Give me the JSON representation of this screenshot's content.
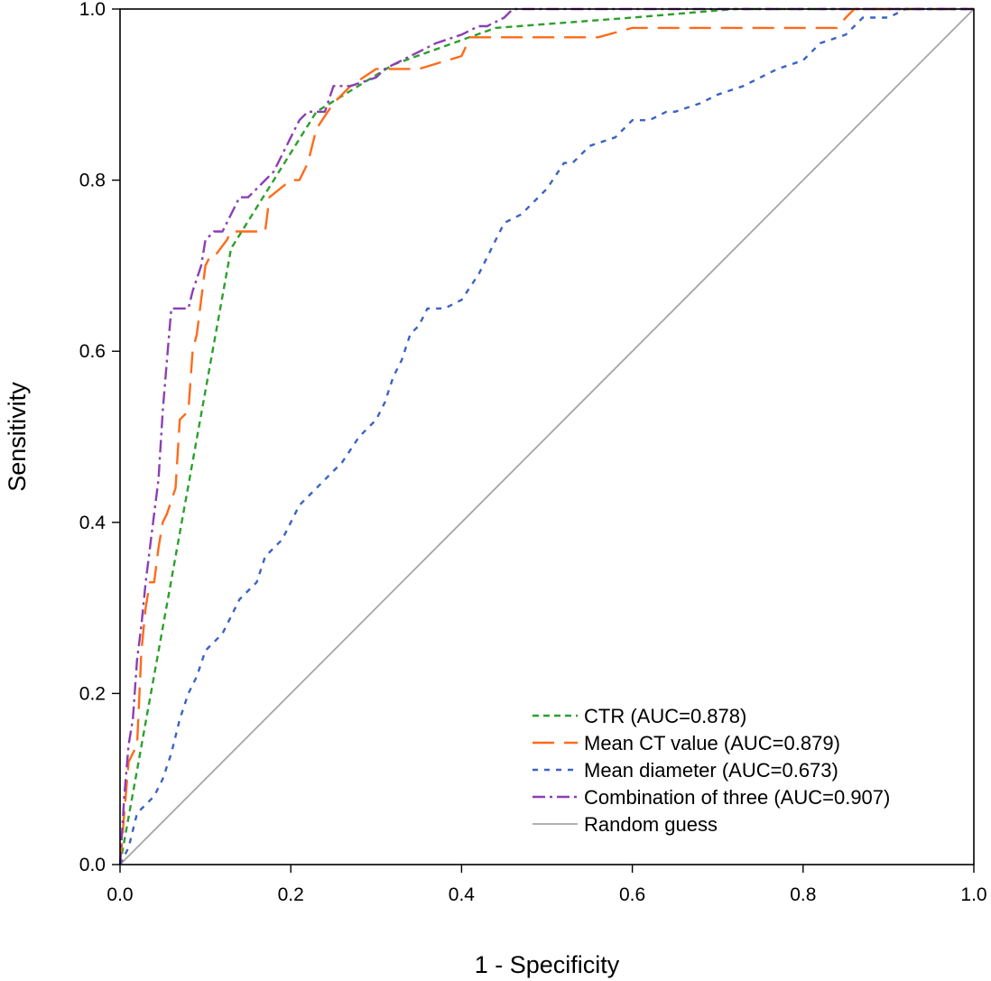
{
  "chart_data": {
    "type": "line",
    "title": "",
    "xlabel": "1 - Specificity",
    "ylabel": "Sensitivity",
    "xlim": [
      0,
      1
    ],
    "ylim": [
      0,
      1
    ],
    "x_ticks": [
      "0.0",
      "0.2",
      "0.4",
      "0.6",
      "0.8",
      "1.0"
    ],
    "y_ticks": [
      "0.0",
      "0.2",
      "0.4",
      "0.6",
      "0.8",
      "1.0"
    ],
    "grid": false,
    "legend_position": "bottom-right",
    "series": [
      {
        "name": "CTR (AUC=0.878)",
        "color": "#2ca02c",
        "style": "short-dash",
        "x": [
          0,
          0.13,
          0.23,
          0.32,
          0.44,
          0.6,
          0.72,
          1
        ],
        "y": [
          0,
          0.72,
          0.88,
          0.935,
          0.978,
          0.99,
          1,
          1
        ]
      },
      {
        "name": "Mean CT value (AUC=0.879)",
        "color": "#ff6a1a",
        "style": "long-dash",
        "x": [
          0,
          0.005,
          0.01,
          0.02,
          0.025,
          0.03,
          0.035,
          0.04,
          0.045,
          0.05,
          0.055,
          0.065,
          0.07,
          0.08,
          0.085,
          0.09,
          0.1,
          0.105,
          0.11,
          0.125,
          0.13,
          0.17,
          0.175,
          0.2,
          0.21,
          0.22,
          0.23,
          0.25,
          0.27,
          0.3,
          0.35,
          0.4,
          0.41,
          0.45,
          0.56,
          0.6,
          0.84,
          0.85,
          0.86,
          1
        ],
        "y": [
          0,
          0.06,
          0.12,
          0.14,
          0.25,
          0.3,
          0.33,
          0.33,
          0.37,
          0.4,
          0.41,
          0.44,
          0.52,
          0.53,
          0.6,
          0.62,
          0.7,
          0.71,
          0.71,
          0.73,
          0.74,
          0.74,
          0.78,
          0.8,
          0.8,
          0.82,
          0.86,
          0.89,
          0.91,
          0.93,
          0.93,
          0.945,
          0.967,
          0.967,
          0.967,
          0.978,
          0.978,
          0.99,
          1,
          1
        ]
      },
      {
        "name": "Mean diameter (AUC=0.673)",
        "color": "#3b62c4",
        "style": "dotted-dash",
        "x": [
          0,
          0.01,
          0.02,
          0.04,
          0.05,
          0.06,
          0.07,
          0.08,
          0.09,
          0.1,
          0.12,
          0.13,
          0.14,
          0.16,
          0.17,
          0.18,
          0.19,
          0.2,
          0.21,
          0.22,
          0.23,
          0.24,
          0.25,
          0.26,
          0.28,
          0.3,
          0.31,
          0.32,
          0.33,
          0.34,
          0.35,
          0.36,
          0.37,
          0.38,
          0.4,
          0.42,
          0.43,
          0.44,
          0.45,
          0.47,
          0.49,
          0.5,
          0.52,
          0.53,
          0.55,
          0.58,
          0.6,
          0.62,
          0.64,
          0.65,
          0.68,
          0.7,
          0.73,
          0.75,
          0.77,
          0.8,
          0.81,
          0.82,
          0.85,
          0.86,
          0.87,
          0.9,
          0.92,
          1
        ],
        "y": [
          0,
          0.02,
          0.06,
          0.08,
          0.1,
          0.13,
          0.17,
          0.2,
          0.22,
          0.25,
          0.27,
          0.29,
          0.31,
          0.33,
          0.36,
          0.37,
          0.38,
          0.4,
          0.42,
          0.43,
          0.44,
          0.45,
          0.46,
          0.47,
          0.5,
          0.52,
          0.54,
          0.57,
          0.59,
          0.62,
          0.63,
          0.65,
          0.65,
          0.65,
          0.66,
          0.69,
          0.71,
          0.73,
          0.75,
          0.76,
          0.78,
          0.79,
          0.82,
          0.82,
          0.84,
          0.85,
          0.87,
          0.87,
          0.88,
          0.88,
          0.89,
          0.9,
          0.91,
          0.92,
          0.93,
          0.94,
          0.95,
          0.96,
          0.97,
          0.98,
          0.99,
          0.99,
          1,
          1
        ]
      },
      {
        "name": "Combination of three (AUC=0.907)",
        "color": "#8b3fb3",
        "style": "dash-dot",
        "x": [
          0,
          0.005,
          0.01,
          0.015,
          0.02,
          0.025,
          0.03,
          0.035,
          0.04,
          0.045,
          0.05,
          0.055,
          0.06,
          0.08,
          0.085,
          0.095,
          0.1,
          0.11,
          0.12,
          0.13,
          0.14,
          0.15,
          0.16,
          0.17,
          0.18,
          0.19,
          0.2,
          0.21,
          0.22,
          0.23,
          0.24,
          0.25,
          0.27,
          0.3,
          0.31,
          0.33,
          0.35,
          0.37,
          0.4,
          0.42,
          0.43,
          0.45,
          0.46,
          1
        ],
        "y": [
          0,
          0.08,
          0.14,
          0.17,
          0.24,
          0.28,
          0.33,
          0.37,
          0.41,
          0.45,
          0.53,
          0.59,
          0.65,
          0.65,
          0.67,
          0.7,
          0.73,
          0.74,
          0.74,
          0.76,
          0.78,
          0.78,
          0.79,
          0.8,
          0.81,
          0.83,
          0.85,
          0.87,
          0.88,
          0.88,
          0.88,
          0.91,
          0.91,
          0.92,
          0.93,
          0.94,
          0.95,
          0.96,
          0.97,
          0.98,
          0.98,
          0.99,
          1,
          1
        ]
      },
      {
        "name": "Random guess",
        "color": "#a6a6a6",
        "style": "solid",
        "x": [
          0,
          1
        ],
        "y": [
          0,
          1
        ]
      }
    ]
  }
}
